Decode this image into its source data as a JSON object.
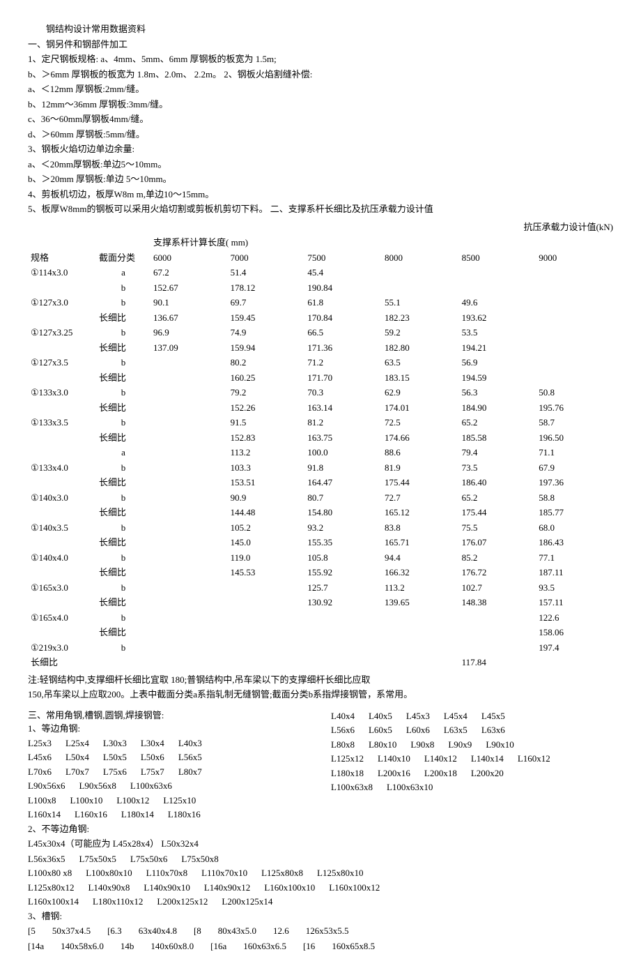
{
  "doc": {
    "title": "钢结构设计常用数据资料",
    "sec1_heading": "一、钢另件和钢部件加工",
    "s1_1": "1、定尺钢板规格: a、4mm、5mm、6mm 厚钢板的板宽为 1.5m;",
    "s1_b": "b、＞6mm 厚钢板的板宽为 1.8m、2.0m、 2.2m。 2、钢板火焰割缝补偿:",
    "s2_a": "a、＜12mm 厚钢板:2mm/缝。",
    "s2_b": "b、12mm～36mm 厚钢板:3mm/缝。",
    "s2_c": "c、36～60mm厚钢板4mm/缝。",
    "s2_d": "d、＞60mm 厚钢板:5mm/缝。",
    "s3": "3、钢板火焰切边单边余量:",
    "s3_a": "a、＜20mm厚钢板:单边5～10mm。",
    "s3_b": "b、＞20mm 厚钢板:单边 5～10mm。",
    "s4": "4、剪板机切边，板厚W8m m,单边10～15mm。",
    "s5": "5、板厚W8mm的钢板可以采用火焰切割或剪板机剪切下料。 二、支撑系杆长细比及抗压承载力设计值",
    "table_caption_right": "抗压承载力设计值(kN)",
    "table_header_mid": "支撑系杆计算长度( mm)",
    "th_spec": "规格",
    "th_cls": "截面分类",
    "th_6000": "6000",
    "th_7000": "7000",
    "th_7500": "7500",
    "th_8000": "8000",
    "th_8500": "8500",
    "th_9000": "9000",
    "changxi": "长细比",
    "note1": "注:轻钢结构中,支撑细杆长细比宜取 180;普钢结构中,吊车梁以下的支撑细杆长细比应取",
    "note2": "150,吊车梁以上应取200。上表中截面分类a系指轧制无缝钢管;截面分类b系指焊接钢管，系常用。",
    "sec3_heading": "三、常用角钢,槽钢,圆钢,焊接钢管:",
    "sec3_sub1": "1、等边角钢:",
    "sec3_sub2": "2、不等边角钢:",
    "sec3_sub2_line": "L45x30x4（可能应为 L45x28x4）    L50x32x4",
    "sec3_sub3": "3、槽钢:"
  },
  "rows": [
    {
      "spec": "①114x3.0",
      "cls_a": "a",
      "cls_b": "b",
      "a": [
        "67.2",
        "51.4",
        "45.4",
        "",
        "",
        ""
      ],
      "b": [
        "152.67",
        "178.12",
        "190.84",
        "",
        "",
        ""
      ]
    },
    {
      "spec": "①127x3.0",
      "cls_b": "b",
      "b": [
        "90.1",
        "69.7",
        "61.8",
        "55.1",
        "49.6",
        ""
      ],
      "cx": [
        "136.67",
        "159.45",
        "170.84",
        "182.23",
        "193.62",
        ""
      ]
    },
    {
      "spec": "①127x3.25",
      "cls_b": "b",
      "b": [
        "96.9",
        "74.9",
        "66.5",
        "59.2",
        "53.5",
        ""
      ],
      "cx": [
        "137.09",
        "159.94",
        "171.36",
        "182.80",
        "194.21",
        ""
      ]
    },
    {
      "spec": "①127x3.5",
      "cls_b": "b",
      "b": [
        "",
        "80.2",
        "71.2",
        "63.5",
        "56.9",
        ""
      ],
      "cx": [
        "",
        "160.25",
        "171.70",
        "183.15",
        "194.59",
        ""
      ]
    },
    {
      "spec": "①133x3.0",
      "cls_b": "b",
      "b": [
        "",
        "79.2",
        "70.3",
        "62.9",
        "56.3",
        "50.8"
      ],
      "cx": [
        "",
        "152.26",
        "163.14",
        "174.01",
        "184.90",
        "195.76"
      ]
    },
    {
      "spec": "①133x3.5",
      "cls_b": "b",
      "b": [
        "",
        "91.5",
        "81.2",
        "72.5",
        "65.2",
        "58.7"
      ],
      "cx": [
        "",
        "152.83",
        "163.75",
        "174.66",
        "185.58",
        "196.50"
      ]
    },
    {
      "spec": "",
      "cls_a": "a",
      "a": [
        "",
        "113.2",
        "100.0",
        "88.6",
        "79.4",
        "71.1"
      ]
    },
    {
      "spec": "①133x4.0",
      "cls_b": "b",
      "b": [
        "",
        "103.3",
        "91.8",
        "81.9",
        "73.5",
        "67.9"
      ],
      "cx": [
        "",
        "153.51",
        "164.47",
        "175.44",
        "186.40",
        "197.36"
      ]
    },
    {
      "spec": "①140x3.0",
      "cls_b": "b",
      "b": [
        "",
        "90.9",
        "80.7",
        "72.7",
        "65.2",
        "58.8"
      ],
      "cx": [
        "",
        "144.48",
        "154.80",
        "165.12",
        "175.44",
        "185.77"
      ]
    },
    {
      "spec": "①140x3.5",
      "cls_b": "b",
      "b": [
        "",
        "105.2",
        "93.2",
        "83.8",
        "75.5",
        "68.0"
      ],
      "cx": [
        "",
        "145.0",
        "155.35",
        "165.71",
        "176.07",
        "186.43"
      ]
    },
    {
      "spec": "①140x4.0",
      "cls_b": "b",
      "b": [
        "",
        "119.0",
        "105.8",
        "94.4",
        "85.2",
        "77.1"
      ],
      "cx": [
        "",
        "145.53",
        "155.92",
        "166.32",
        "176.72",
        "187.11"
      ]
    },
    {
      "spec": "①165x3.0",
      "cls_b": "b",
      "b": [
        "",
        "",
        "125.7",
        "113.2",
        "102.7",
        "93.5"
      ],
      "cx": [
        "",
        "",
        "130.92",
        "139.65",
        "148.38",
        "157.11"
      ]
    },
    {
      "spec": "①165x4.0",
      "cls_b": "b",
      "b": [
        "",
        "",
        "",
        "",
        "",
        "122.6"
      ],
      "cx": [
        "",
        "",
        "",
        "",
        "",
        "158.06"
      ]
    },
    {
      "spec": "①219x3.0",
      "cls_b": "b",
      "b": [
        "",
        "",
        "",
        "",
        "",
        "197.4"
      ],
      "cx_label_left": true,
      "cx": [
        "",
        "",
        "",
        "",
        "117.84",
        ""
      ]
    }
  ],
  "angles_equal_right": [
    "L40x4",
    "L40x5",
    "L45x3",
    "L45x4",
    "L45x5"
  ],
  "angles_equal_rows": [
    [
      "L25x3",
      "L25x4",
      "L30x3",
      "L30x4",
      "L40x3"
    ],
    [
      "L45x6",
      "L50x4",
      "L50x5",
      "L50x6",
      "L56x5"
    ],
    [
      "L70x6",
      "L70x7",
      "L75x6",
      "L75x7",
      "L80x7"
    ],
    [
      "L90x56x6",
      "",
      "L90x56x8",
      "",
      "L100x63x6"
    ],
    [
      "L100x8",
      "L100x10",
      "L100x12",
      "L125x10",
      ""
    ],
    [
      "L160x14",
      "L160x16",
      "L180x14",
      "L180x16",
      ""
    ]
  ],
  "angles_equal_right_rows": [
    [
      "L56x6",
      "L60x5",
      "L60x6",
      "L63x5",
      "L63x6"
    ],
    [
      "L80x8",
      "L80x10",
      "L90x8",
      "L90x9",
      "L90x10"
    ],
    [
      "L125x12",
      "L140x10",
      "L140x12",
      "L140x14",
      "L160x12"
    ],
    [
      "L180x18",
      "L200x16",
      "L200x18",
      "L200x20",
      ""
    ],
    [
      "L100x63x8",
      "",
      "L100x63x10",
      "",
      ""
    ]
  ],
  "angles_uneq_rows": [
    [
      "",
      "",
      "",
      "L56x36x5",
      "L75x50x5",
      "L75x50x6",
      "L75x50x8"
    ],
    [
      "L100x80 x8",
      "L100x80x10",
      "L110x70x8",
      "L110x70x10",
      "L125x80x8",
      "L125x80x10",
      ""
    ],
    [
      "L125x80x12",
      "L140x90x8",
      "L140x90x10",
      "L140x90x12",
      "L160x100x10",
      "L160x100x12",
      ""
    ],
    [
      "L160x100x14",
      "L180x110x12",
      "L200x125x12",
      "L200x125x14",
      "",
      "",
      ""
    ]
  ],
  "channel_rows": [
    [
      "[5",
      "50x37x4.5",
      "[6.3",
      "63x40x4.8",
      "[8",
      "80x43x5.0",
      "12.6",
      "126x53x5.5"
    ],
    [
      "[14a",
      "140x58x6.0",
      "14b",
      "140x60x8.0",
      "[16a",
      "160x63x6.5",
      "[16",
      "160x65x8.5"
    ]
  ]
}
